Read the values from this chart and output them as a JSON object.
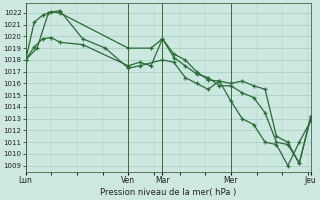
{
  "bg_color": "#cce8e0",
  "grid_color": "#a8ccc4",
  "line_color": "#2a6b35",
  "xlabel": "Pression niveau de la mer( hPa )",
  "ylim": [
    1008.5,
    1022.8
  ],
  "yticks": [
    1009,
    1010,
    1011,
    1012,
    1013,
    1014,
    1015,
    1016,
    1017,
    1018,
    1019,
    1020,
    1021,
    1022
  ],
  "xtick_labels": [
    "Lun",
    "Ven",
    "Mar",
    "Mer",
    "Jeu"
  ],
  "xtick_positions": [
    0.0,
    0.36,
    0.48,
    0.72,
    1.0
  ],
  "vline_positions": [
    0.0,
    0.36,
    0.48,
    0.72,
    1.0
  ],
  "line1_x": [
    0.0,
    0.03,
    0.06,
    0.09,
    0.12,
    0.36,
    0.44,
    0.48,
    0.52,
    0.56,
    0.6,
    0.64,
    0.68,
    0.72,
    0.76,
    0.8,
    0.84,
    0.88,
    0.92,
    0.96,
    1.0
  ],
  "line1_y": [
    1018.0,
    1021.2,
    1021.8,
    1022.1,
    1022.0,
    1019.0,
    1019.0,
    1019.8,
    1018.5,
    1018.0,
    1017.0,
    1016.3,
    1016.2,
    1014.5,
    1013.0,
    1012.5,
    1011.0,
    1010.8,
    1009.0,
    1011.0,
    1012.8
  ],
  "line2_x": [
    0.0,
    0.03,
    0.06,
    0.09,
    0.12,
    0.2,
    0.36,
    0.4,
    0.44,
    0.48,
    0.52,
    0.56,
    0.6,
    0.64,
    0.68,
    0.72,
    0.76,
    0.8,
    0.84,
    0.88,
    0.92,
    0.96,
    1.0
  ],
  "line2_y": [
    1018.0,
    1019.1,
    1019.8,
    1019.9,
    1019.5,
    1019.3,
    1017.5,
    1017.8,
    1017.5,
    1019.8,
    1018.2,
    1017.5,
    1016.8,
    1016.5,
    1015.8,
    1015.8,
    1015.2,
    1014.8,
    1013.5,
    1011.0,
    1010.8,
    1009.2,
    1013.0
  ],
  "line3_x": [
    0.0,
    0.04,
    0.08,
    0.12,
    0.2,
    0.28,
    0.36,
    0.4,
    0.48,
    0.52,
    0.56,
    0.6,
    0.64,
    0.68,
    0.72,
    0.76,
    0.8,
    0.84,
    0.88,
    0.92,
    0.96,
    1.0
  ],
  "line3_y": [
    1018.0,
    1019.0,
    1022.0,
    1022.2,
    1019.8,
    1019.0,
    1017.3,
    1017.5,
    1018.0,
    1017.8,
    1016.5,
    1016.0,
    1015.5,
    1016.2,
    1016.0,
    1016.2,
    1015.8,
    1015.5,
    1011.5,
    1011.0,
    1009.2,
    1013.2
  ],
  "xlim": [
    0.0,
    1.0
  ]
}
